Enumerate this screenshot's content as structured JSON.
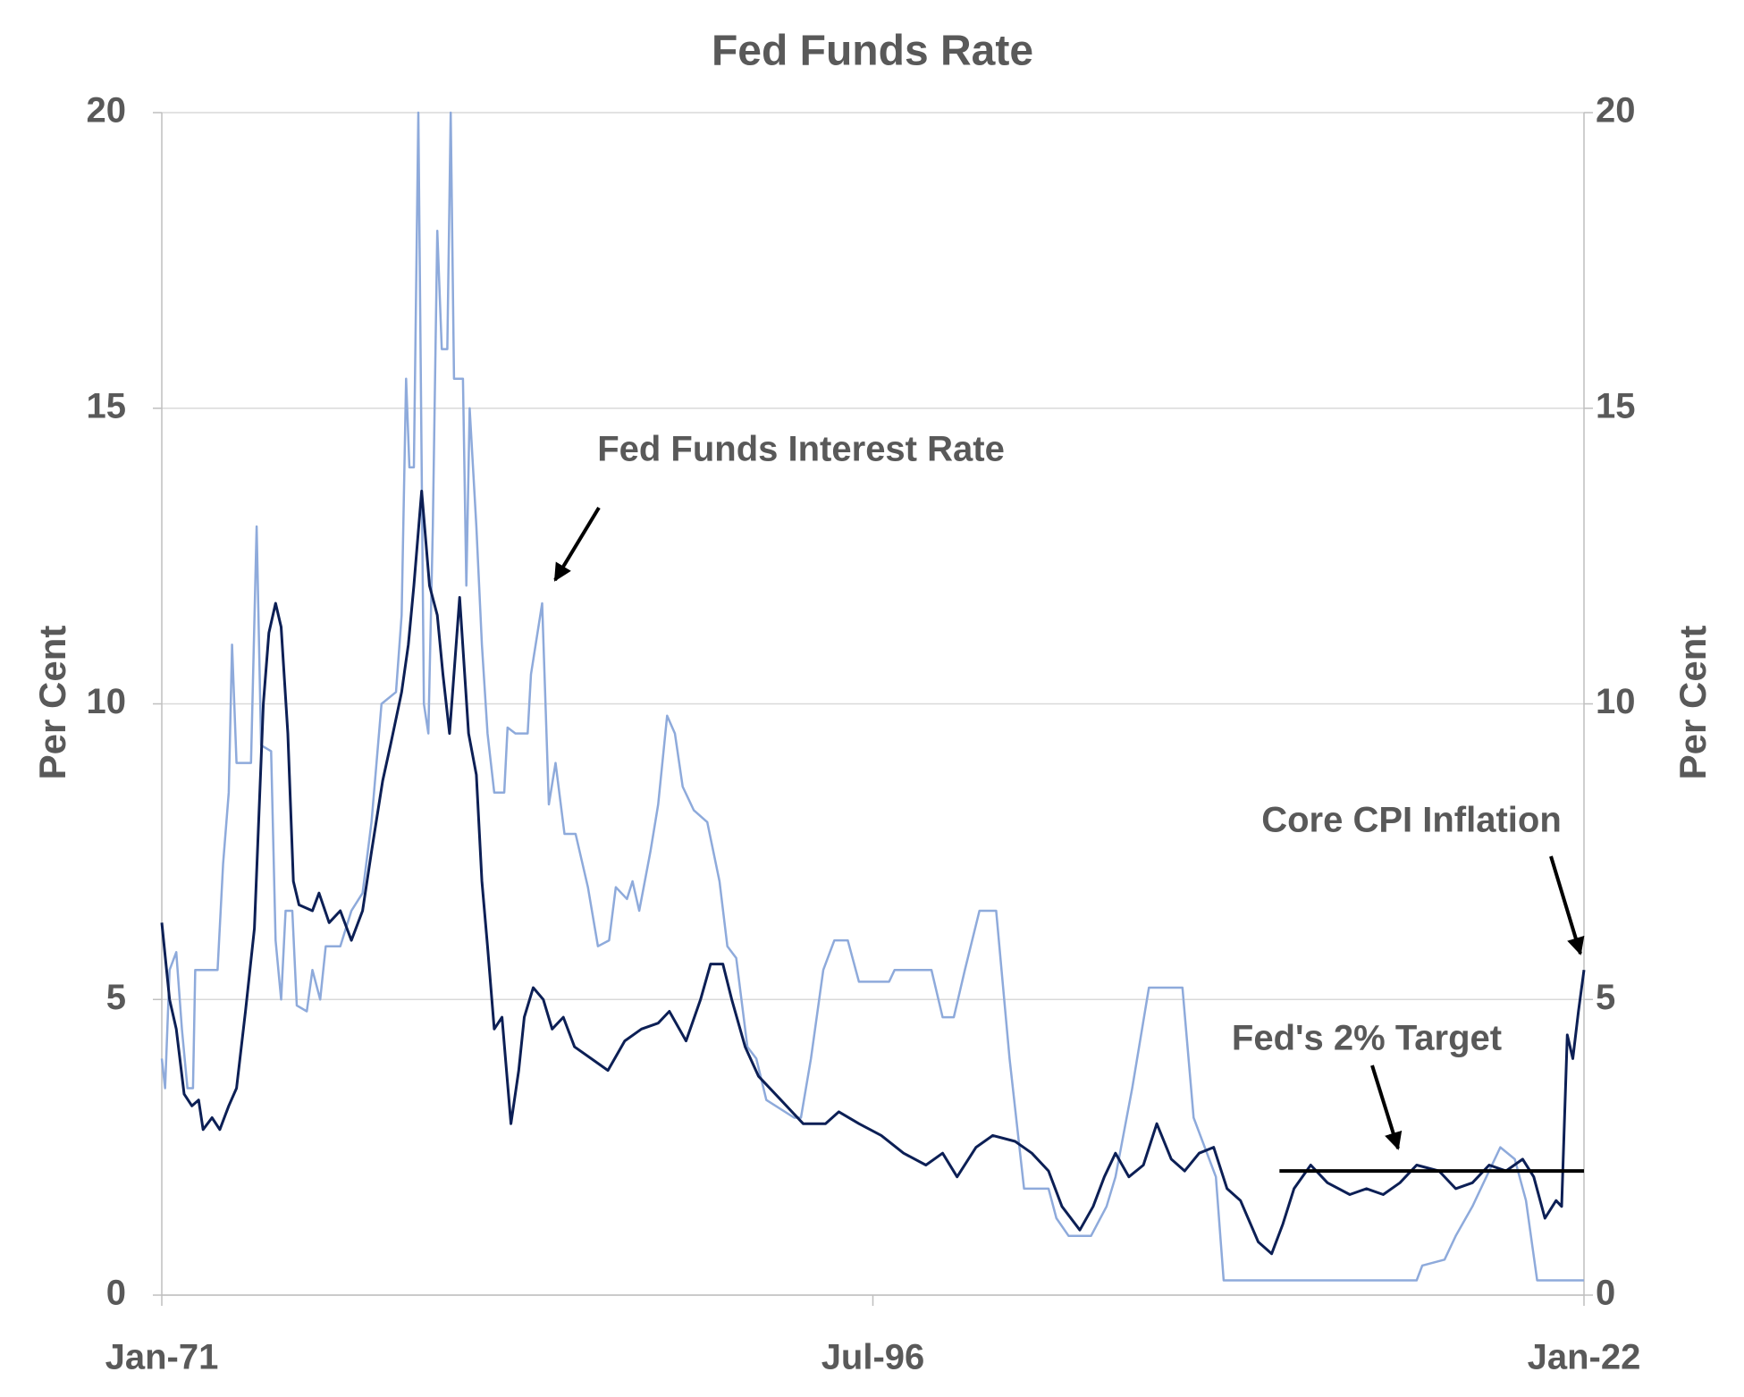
{
  "chart_data": {
    "type": "line",
    "title": "Fed Funds Rate",
    "y_label": "Per  Cent",
    "y2_label": "Per  Cent",
    "xlim": [
      1971,
      2022
    ],
    "xticks": [
      {
        "value": 1971,
        "label": "Jan-71"
      },
      {
        "value": 1996.5,
        "label": "Jul-96"
      },
      {
        "value": 2022,
        "label": "Jan-22"
      }
    ],
    "ylim": [
      0,
      20
    ],
    "yticks": [
      0,
      5,
      10,
      15,
      20
    ],
    "y2lim": [
      0,
      20
    ],
    "y2ticks": [
      0,
      5,
      10,
      15,
      20
    ],
    "grid": true,
    "series": [
      {
        "name": "Fed Funds Interest Rate",
        "color": "#8eaadb",
        "x": [
          1971.0,
          1971.12,
          1971.28,
          1971.52,
          1971.72,
          1971.92,
          1972.12,
          1972.2,
          1973.0,
          1973.2,
          1973.4,
          1973.52,
          1973.68,
          1974.2,
          1974.4,
          1974.56,
          1974.92,
          1975.08,
          1975.28,
          1975.44,
          1975.68,
          1975.84,
          1976.2,
          1976.4,
          1976.68,
          1976.88,
          1977.4,
          1977.8,
          1978.2,
          1978.52,
          1978.88,
          1979.4,
          1979.6,
          1979.76,
          1979.88,
          1980.04,
          1980.2,
          1980.4,
          1980.56,
          1980.72,
          1980.88,
          1981.04,
          1981.24,
          1981.36,
          1981.48,
          1981.8,
          1981.92,
          1982.04,
          1982.28,
          1982.48,
          1982.68,
          1982.92,
          1983.28,
          1983.4,
          1983.68,
          1984.12,
          1984.24,
          1984.64,
          1984.88,
          1985.12,
          1985.44,
          1985.84,
          1986.28,
          1986.64,
          1987.04,
          1987.28,
          1987.68,
          1987.88,
          1988.12,
          1988.52,
          1988.8,
          1989.12,
          1989.4,
          1989.68,
          1990.08,
          1990.56,
          1991.0,
          1991.28,
          1991.6,
          1992.0,
          1992.32,
          1992.68,
          1993.68,
          1993.92,
          1994.28,
          1994.72,
          1995.12,
          1995.6,
          1996.0,
          1997.08,
          1997.28,
          1998.6,
          1999.0,
          1999.4,
          1999.8,
          2000.32,
          2000.92,
          2001.4,
          2001.92,
          2002.8,
          2003.08,
          2003.52,
          2004.32,
          2004.88,
          2005.2,
          2005.8,
          2006.4,
          2007.6,
          2008.0,
          2008.8,
          2009.08,
          2016.0,
          2016.2,
          2017.0,
          2017.4,
          2018.0,
          2019.0,
          2019.52,
          2019.92,
          2020.32,
          2022.0
        ],
        "values": [
          4.0,
          3.5,
          5.5,
          5.8,
          4.5,
          3.5,
          3.5,
          5.5,
          5.5,
          7.3,
          8.5,
          11,
          9,
          9,
          13,
          9.3,
          9.2,
          6,
          5,
          6.5,
          6.5,
          4.9,
          4.8,
          5.5,
          5.0,
          5.9,
          5.9,
          6.5,
          6.8,
          8.0,
          10,
          10.2,
          11.5,
          15.5,
          14,
          14,
          20,
          10,
          9.5,
          13,
          18,
          16,
          16,
          20,
          15.5,
          15.5,
          12,
          15,
          13,
          11,
          9.5,
          8.5,
          8.5,
          9.6,
          9.5,
          9.5,
          10.5,
          11.7,
          8.3,
          9,
          7.8,
          7.8,
          6.9,
          5.9,
          6.0,
          6.9,
          6.7,
          7,
          6.5,
          7.5,
          8.3,
          9.8,
          9.5,
          8.6,
          8.2,
          8,
          7,
          5.9,
          5.7,
          4.2,
          4.0,
          3.3,
          3.0,
          3.0,
          4,
          5.5,
          6,
          6,
          5.3,
          5.3,
          5.5,
          5.5,
          4.7,
          4.7,
          5.5,
          6.5,
          6.5,
          4,
          1.8,
          1.8,
          1.3,
          1.0,
          1.0,
          1.5,
          2,
          3.5,
          5.2,
          5.2,
          3,
          2.0,
          0.25,
          0.25,
          0.5,
          0.6,
          1.0,
          1.5,
          2.5,
          2.3,
          1.6,
          0.25,
          0.25
        ]
      },
      {
        "name": "Core CPI Inflation",
        "color": "#0c1f55",
        "x": [
          1971.0,
          1971.28,
          1971.52,
          1971.8,
          1972.08,
          1972.32,
          1972.48,
          1972.8,
          1973.08,
          1973.4,
          1973.68,
          1974.0,
          1974.32,
          1974.64,
          1974.84,
          1975.08,
          1975.28,
          1975.52,
          1975.72,
          1975.92,
          1976.4,
          1976.64,
          1977.0,
          1977.4,
          1977.8,
          1978.2,
          1978.52,
          1978.92,
          1979.2,
          1979.6,
          1979.84,
          1980.04,
          1980.32,
          1980.6,
          1980.88,
          1981.08,
          1981.32,
          1981.68,
          1982.0,
          1982.28,
          1982.48,
          1982.68,
          1982.92,
          1983.2,
          1983.52,
          1983.8,
          1984.0,
          1984.32,
          1984.68,
          1985.0,
          1985.4,
          1985.8,
          1986.4,
          1987.0,
          1987.6,
          1988.2,
          1988.8,
          1989.2,
          1989.8,
          1990.32,
          1990.68,
          1991.12,
          1991.44,
          1991.92,
          1992.4,
          1993.2,
          1994.0,
          1994.8,
          1995.28,
          1996.0,
          1996.8,
          1997.6,
          1998.4,
          1999.0,
          1999.52,
          2000.2,
          2000.8,
          2001.6,
          2002.2,
          2002.8,
          2003.28,
          2003.92,
          2004.4,
          2004.8,
          2005.2,
          2005.68,
          2006.2,
          2006.68,
          2007.2,
          2007.68,
          2008.2,
          2008.72,
          2009.2,
          2009.68,
          2010.32,
          2010.8,
          2011.2,
          2011.6,
          2012.2,
          2012.8,
          2013.6,
          2014.2,
          2014.8,
          2015.4,
          2016.0,
          2016.8,
          2017.4,
          2018.0,
          2018.6,
          2019.2,
          2019.8,
          2020.2,
          2020.6,
          2021.0,
          2021.2,
          2021.4,
          2021.6,
          2021.8,
          2022.0
        ],
        "values": [
          6.3,
          5.0,
          4.5,
          3.4,
          3.2,
          3.3,
          2.8,
          3.0,
          2.8,
          3.2,
          3.5,
          4.8,
          6.2,
          10,
          11.2,
          11.7,
          11.3,
          9.5,
          7,
          6.6,
          6.5,
          6.8,
          6.3,
          6.5,
          6.0,
          6.5,
          7.5,
          8.7,
          9.3,
          10.2,
          11,
          12,
          13.6,
          12,
          11.5,
          10.5,
          9.5,
          11.8,
          9.5,
          8.8,
          7,
          5.9,
          4.5,
          4.7,
          2.9,
          3.8,
          4.7,
          5.2,
          5.0,
          4.5,
          4.7,
          4.2,
          4.0,
          3.8,
          4.3,
          4.5,
          4.6,
          4.8,
          4.3,
          5.0,
          5.6,
          5.6,
          5.0,
          4.2,
          3.7,
          3.3,
          2.9,
          2.9,
          3.1,
          2.9,
          2.7,
          2.4,
          2.2,
          2.4,
          2.0,
          2.5,
          2.7,
          2.6,
          2.4,
          2.1,
          1.5,
          1.1,
          1.5,
          2.0,
          2.4,
          2.0,
          2.2,
          2.9,
          2.3,
          2.1,
          2.4,
          2.5,
          1.8,
          1.6,
          0.9,
          0.7,
          1.2,
          1.8,
          2.2,
          1.9,
          1.7,
          1.8,
          1.7,
          1.9,
          2.2,
          2.1,
          1.8,
          1.9,
          2.2,
          2.1,
          2.3,
          2.0,
          1.3,
          1.6,
          1.5,
          4.4,
          4.0,
          4.8,
          5.5
        ]
      }
    ],
    "reference_line": {
      "label": "Fed's 2% Target",
      "value": 2.1,
      "x": [
        2011.08,
        2022
      ],
      "color": "#000000"
    }
  }
}
